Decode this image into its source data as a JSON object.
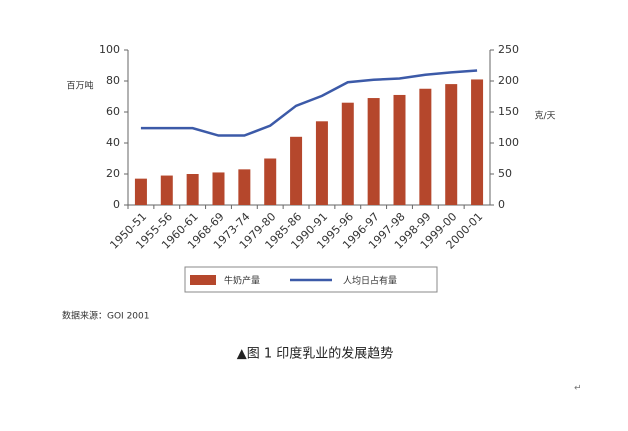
{
  "chart_data": {
    "type": "bar",
    "categories": [
      "1950-51",
      "1955-56",
      "1960-61",
      "1968-69",
      "1973-74",
      "1979-80",
      "1985-86",
      "1990-91",
      "1995-96",
      "1996-97",
      "1997-98",
      "1998-99",
      "1999-00",
      "2000-01"
    ],
    "series": [
      {
        "name": "牛奶产量",
        "type": "bar",
        "color": "#b5472c",
        "values": [
          17,
          19,
          20,
          21,
          23,
          30,
          44,
          54,
          66,
          69,
          71,
          75,
          78,
          81
        ]
      },
      {
        "name": "人均日占有量",
        "type": "line",
        "axis": "y2",
        "color": "#3c5aa8",
        "values": [
          124,
          124,
          124,
          112,
          112,
          128,
          160,
          176,
          198,
          202,
          204,
          210,
          214,
          217
        ]
      }
    ],
    "ylabel": "百万吨",
    "y2label": "克/天",
    "ylim": [
      0,
      100
    ],
    "yticks": [
      0,
      20,
      40,
      60,
      80,
      100
    ],
    "y2lim": [
      0,
      250
    ],
    "y2ticks": [
      0,
      50,
      100,
      150,
      200,
      250
    ],
    "grid": false,
    "source": "数据来源：GOI 2001",
    "caption": "▲图 1 印度乳业的发展趋势",
    "paragraph_mark": "↵"
  }
}
